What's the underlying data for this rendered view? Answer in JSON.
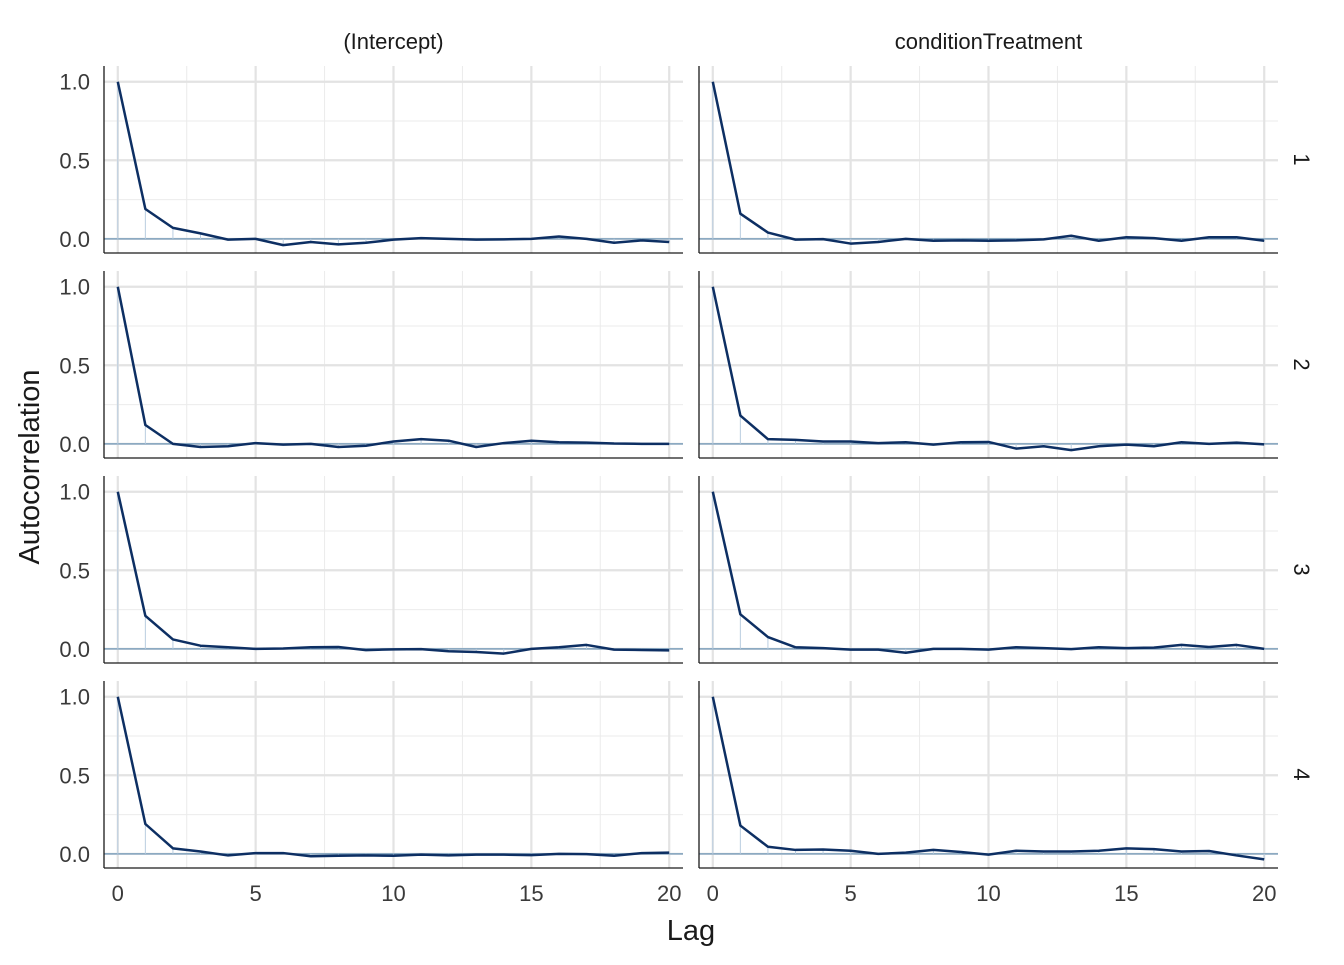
{
  "chart_data": {
    "type": "line",
    "xlabel": "Lag",
    "ylabel": "Autocorrelation",
    "xlim": [
      -0.5,
      20.5
    ],
    "ylim": [
      -0.09,
      1.1
    ],
    "x_ticks": [
      0,
      5,
      10,
      15,
      20
    ],
    "y_ticks": [
      0.0,
      0.5,
      1.0
    ],
    "x_tick_labels": [
      "0",
      "5",
      "10",
      "15",
      "20"
    ],
    "y_tick_labels": [
      "0.0",
      "0.5",
      "1.0"
    ],
    "columns": [
      "(Intercept)",
      "conditionTreatment"
    ],
    "rows": [
      "1",
      "2",
      "3",
      "4"
    ],
    "grid": true,
    "line_color": "#0d2f63",
    "zero_line_color": "#6f97b8",
    "lags": [
      0,
      1,
      2,
      3,
      4,
      5,
      6,
      7,
      8,
      9,
      10,
      11,
      12,
      13,
      14,
      15,
      16,
      17,
      18,
      19,
      20
    ],
    "panels": [
      {
        "column": "(Intercept)",
        "row": "1",
        "values": [
          1.0,
          0.19,
          0.07,
          0.035,
          -0.005,
          0.0,
          -0.04,
          -0.02,
          -0.035,
          -0.025,
          -0.005,
          0.005,
          0.0,
          -0.005,
          -0.003,
          0.0,
          0.015,
          0.0,
          -0.025,
          -0.01,
          -0.02
        ]
      },
      {
        "column": "conditionTreatment",
        "row": "1",
        "values": [
          1.0,
          0.16,
          0.04,
          -0.005,
          -0.002,
          -0.03,
          -0.02,
          0.0,
          -0.012,
          -0.01,
          -0.012,
          -0.01,
          -0.003,
          0.02,
          -0.012,
          0.01,
          0.005,
          -0.012,
          0.01,
          0.01,
          -0.012
        ]
      },
      {
        "column": "(Intercept)",
        "row": "2",
        "values": [
          1.0,
          0.12,
          0.0,
          -0.02,
          -0.015,
          0.005,
          -0.005,
          0.0,
          -0.02,
          -0.012,
          0.015,
          0.03,
          0.02,
          -0.02,
          0.005,
          0.02,
          0.01,
          0.008,
          0.002,
          0.0,
          0.0
        ]
      },
      {
        "column": "conditionTreatment",
        "row": "2",
        "values": [
          1.0,
          0.18,
          0.03,
          0.025,
          0.015,
          0.015,
          0.005,
          0.01,
          -0.005,
          0.01,
          0.012,
          -0.03,
          -0.015,
          -0.04,
          -0.015,
          -0.005,
          -0.015,
          0.01,
          0.0,
          0.008,
          -0.003
        ]
      },
      {
        "column": "(Intercept)",
        "row": "3",
        "values": [
          1.0,
          0.21,
          0.06,
          0.02,
          0.01,
          0.0,
          0.002,
          0.01,
          0.012,
          -0.008,
          -0.003,
          -0.002,
          -0.015,
          -0.02,
          -0.03,
          0.0,
          0.01,
          0.025,
          -0.005,
          -0.007,
          -0.01
        ]
      },
      {
        "column": "conditionTreatment",
        "row": "3",
        "values": [
          1.0,
          0.22,
          0.075,
          0.01,
          0.005,
          -0.005,
          -0.005,
          -0.025,
          0.0,
          0.0,
          -0.005,
          0.01,
          0.005,
          -0.002,
          0.01,
          0.005,
          0.008,
          0.025,
          0.012,
          0.025,
          0.0
        ]
      },
      {
        "column": "(Intercept)",
        "row": "4",
        "values": [
          1.0,
          0.19,
          0.035,
          0.015,
          -0.01,
          0.005,
          0.005,
          -0.015,
          -0.012,
          -0.01,
          -0.012,
          -0.005,
          -0.01,
          -0.005,
          -0.005,
          -0.008,
          0.0,
          -0.002,
          -0.012,
          0.005,
          0.008
        ]
      },
      {
        "column": "conditionTreatment",
        "row": "4",
        "values": [
          1.0,
          0.18,
          0.045,
          0.025,
          0.028,
          0.02,
          0.0,
          0.008,
          0.025,
          0.012,
          -0.005,
          0.02,
          0.015,
          0.015,
          0.02,
          0.035,
          0.03,
          0.015,
          0.018,
          -0.01,
          -0.035
        ]
      }
    ]
  }
}
